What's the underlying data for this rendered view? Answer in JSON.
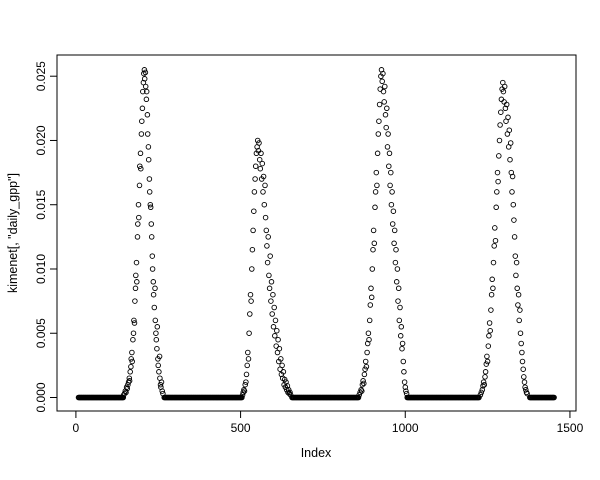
{
  "chart_data": {
    "type": "scatter",
    "title": "",
    "xlabel": "Index",
    "ylabel": "kimenet[, \"daily_gpp\"]",
    "background": "#ffffff",
    "marker": {
      "shape": "open-circle",
      "color": "#000000"
    },
    "grid": false,
    "legend": null,
    "x_range": [
      -57.4,
      1518.4
    ],
    "y_range": [
      -0.00105,
      0.02665
    ],
    "x_ticks": [
      {
        "value": 0,
        "label": "0"
      },
      {
        "value": 500,
        "label": "500"
      },
      {
        "value": 1000,
        "label": "1000"
      },
      {
        "value": 1500,
        "label": "1500"
      }
    ],
    "y_ticks": [
      {
        "value": 0.0,
        "label": "0.000"
      },
      {
        "value": 0.005,
        "label": "0.005"
      },
      {
        "value": 0.01,
        "label": "0.010"
      },
      {
        "value": 0.015,
        "label": "0.015"
      },
      {
        "value": 0.02,
        "label": "0.020"
      },
      {
        "value": 0.025,
        "label": "0.025"
      }
    ],
    "zero_runs": [
      [
        8,
        145
      ],
      [
        268,
        504
      ],
      [
        656,
        858
      ],
      [
        1006,
        1224
      ],
      [
        1378,
        1452
      ]
    ],
    "points": [
      [
        145,
        0.0002
      ],
      [
        148,
        0.0003
      ],
      [
        150,
        0.0005
      ],
      [
        152,
        0.0004
      ],
      [
        154,
        0.0008
      ],
      [
        156,
        0.0007
      ],
      [
        158,
        0.001
      ],
      [
        160,
        0.0012
      ],
      [
        162,
        0.0015
      ],
      [
        163,
        0.0013
      ],
      [
        165,
        0.002
      ],
      [
        167,
        0.0024
      ],
      [
        168,
        0.003
      ],
      [
        170,
        0.0035
      ],
      [
        171,
        0.0028
      ],
      [
        173,
        0.0045
      ],
      [
        175,
        0.005
      ],
      [
        176,
        0.006
      ],
      [
        178,
        0.0058
      ],
      [
        179,
        0.0075
      ],
      [
        181,
        0.0085
      ],
      [
        182,
        0.0095
      ],
      [
        184,
        0.0105
      ],
      [
        185,
        0.009
      ],
      [
        187,
        0.0125
      ],
      [
        188,
        0.0135
      ],
      [
        190,
        0.015
      ],
      [
        191,
        0.014
      ],
      [
        193,
        0.0165
      ],
      [
        194,
        0.018
      ],
      [
        196,
        0.019
      ],
      [
        197,
        0.0178
      ],
      [
        199,
        0.0205
      ],
      [
        200,
        0.0215
      ],
      [
        202,
        0.0225
      ],
      [
        203,
        0.0238
      ],
      [
        205,
        0.0245
      ],
      [
        206,
        0.0252
      ],
      [
        208,
        0.0255
      ],
      [
        209,
        0.0248
      ],
      [
        211,
        0.0253
      ],
      [
        212,
        0.0242
      ],
      [
        214,
        0.0232
      ],
      [
        215,
        0.0238
      ],
      [
        217,
        0.022
      ],
      [
        218,
        0.0205
      ],
      [
        220,
        0.0195
      ],
      [
        221,
        0.0185
      ],
      [
        223,
        0.017
      ],
      [
        224,
        0.016
      ],
      [
        226,
        0.015
      ],
      [
        227,
        0.0148
      ],
      [
        229,
        0.0135
      ],
      [
        230,
        0.0125
      ],
      [
        232,
        0.011
      ],
      [
        233,
        0.01
      ],
      [
        235,
        0.009
      ],
      [
        236,
        0.008
      ],
      [
        238,
        0.007
      ],
      [
        240,
        0.0085
      ],
      [
        241,
        0.006
      ],
      [
        243,
        0.005
      ],
      [
        244,
        0.0045
      ],
      [
        246,
        0.0038
      ],
      [
        247,
        0.0055
      ],
      [
        249,
        0.003
      ],
      [
        250,
        0.0025
      ],
      [
        252,
        0.002
      ],
      [
        254,
        0.0032
      ],
      [
        255,
        0.0015
      ],
      [
        257,
        0.001
      ],
      [
        258,
        0.0008
      ],
      [
        260,
        0.0012
      ],
      [
        262,
        0.0005
      ],
      [
        264,
        0.0003
      ],
      [
        506,
        0.0002
      ],
      [
        508,
        0.0004
      ],
      [
        510,
        0.0006
      ],
      [
        512,
        0.0005
      ],
      [
        514,
        0.001
      ],
      [
        516,
        0.0012
      ],
      [
        518,
        0.0018
      ],
      [
        520,
        0.0025
      ],
      [
        522,
        0.0035
      ],
      [
        524,
        0.003
      ],
      [
        526,
        0.005
      ],
      [
        528,
        0.0065
      ],
      [
        530,
        0.008
      ],
      [
        532,
        0.0075
      ],
      [
        534,
        0.01
      ],
      [
        536,
        0.0115
      ],
      [
        538,
        0.013
      ],
      [
        540,
        0.0145
      ],
      [
        542,
        0.016
      ],
      [
        544,
        0.017
      ],
      [
        546,
        0.018
      ],
      [
        548,
        0.019
      ],
      [
        550,
        0.0195
      ],
      [
        552,
        0.02
      ],
      [
        554,
        0.0192
      ],
      [
        556,
        0.0198
      ],
      [
        558,
        0.0185
      ],
      [
        560,
        0.0178
      ],
      [
        562,
        0.019
      ],
      [
        564,
        0.017
      ],
      [
        566,
        0.0182
      ],
      [
        568,
        0.016
      ],
      [
        570,
        0.0172
      ],
      [
        572,
        0.015
      ],
      [
        574,
        0.0165
      ],
      [
        576,
        0.014
      ],
      [
        578,
        0.013
      ],
      [
        580,
        0.0118
      ],
      [
        582,
        0.0105
      ],
      [
        584,
        0.0125
      ],
      [
        586,
        0.0095
      ],
      [
        588,
        0.0085
      ],
      [
        590,
        0.011
      ],
      [
        592,
        0.0075
      ],
      [
        594,
        0.009
      ],
      [
        596,
        0.0065
      ],
      [
        598,
        0.008
      ],
      [
        600,
        0.0055
      ],
      [
        602,
        0.007
      ],
      [
        604,
        0.0048
      ],
      [
        606,
        0.006
      ],
      [
        608,
        0.004
      ],
      [
        610,
        0.0052
      ],
      [
        612,
        0.0035
      ],
      [
        614,
        0.0045
      ],
      [
        616,
        0.0028
      ],
      [
        618,
        0.0038
      ],
      [
        620,
        0.0022
      ],
      [
        622,
        0.003
      ],
      [
        624,
        0.0018
      ],
      [
        626,
        0.0025
      ],
      [
        628,
        0.0015
      ],
      [
        630,
        0.002
      ],
      [
        632,
        0.001
      ],
      [
        634,
        0.0014
      ],
      [
        636,
        0.0008
      ],
      [
        638,
        0.0012
      ],
      [
        640,
        0.0006
      ],
      [
        642,
        0.0009
      ],
      [
        644,
        0.0004
      ],
      [
        646,
        0.0006
      ],
      [
        648,
        0.0003
      ],
      [
        650,
        0.0004
      ],
      [
        652,
        0.0002
      ],
      [
        860,
        0.0002
      ],
      [
        863,
        0.0004
      ],
      [
        866,
        0.0006
      ],
      [
        868,
        0.0005
      ],
      [
        870,
        0.001
      ],
      [
        872,
        0.0013
      ],
      [
        874,
        0.0011
      ],
      [
        876,
        0.0018
      ],
      [
        878,
        0.0022
      ],
      [
        880,
        0.0028
      ],
      [
        882,
        0.0024
      ],
      [
        884,
        0.0035
      ],
      [
        886,
        0.0042
      ],
      [
        888,
        0.005
      ],
      [
        890,
        0.0045
      ],
      [
        892,
        0.006
      ],
      [
        894,
        0.0072
      ],
      [
        896,
        0.0085
      ],
      [
        898,
        0.0078
      ],
      [
        900,
        0.01
      ],
      [
        902,
        0.0115
      ],
      [
        904,
        0.013
      ],
      [
        906,
        0.012
      ],
      [
        908,
        0.0148
      ],
      [
        910,
        0.016
      ],
      [
        912,
        0.0175
      ],
      [
        914,
        0.0165
      ],
      [
        916,
        0.019
      ],
      [
        918,
        0.0205
      ],
      [
        920,
        0.0215
      ],
      [
        922,
        0.0228
      ],
      [
        924,
        0.024
      ],
      [
        926,
        0.025
      ],
      [
        928,
        0.0255
      ],
      [
        930,
        0.0246
      ],
      [
        932,
        0.0252
      ],
      [
        934,
        0.0238
      ],
      [
        936,
        0.023
      ],
      [
        938,
        0.0242
      ],
      [
        940,
        0.022
      ],
      [
        942,
        0.021
      ],
      [
        944,
        0.0225
      ],
      [
        946,
        0.0195
      ],
      [
        948,
        0.0205
      ],
      [
        950,
        0.018
      ],
      [
        952,
        0.019
      ],
      [
        954,
        0.0165
      ],
      [
        956,
        0.0175
      ],
      [
        958,
        0.015
      ],
      [
        960,
        0.016
      ],
      [
        962,
        0.0135
      ],
      [
        964,
        0.0145
      ],
      [
        966,
        0.012
      ],
      [
        968,
        0.013
      ],
      [
        970,
        0.0105
      ],
      [
        972,
        0.0115
      ],
      [
        974,
        0.009
      ],
      [
        976,
        0.01
      ],
      [
        978,
        0.0075
      ],
      [
        980,
        0.0085
      ],
      [
        982,
        0.006
      ],
      [
        984,
        0.007
      ],
      [
        986,
        0.0048
      ],
      [
        988,
        0.0055
      ],
      [
        990,
        0.0038
      ],
      [
        992,
        0.0042
      ],
      [
        994,
        0.0028
      ],
      [
        996,
        0.002
      ],
      [
        998,
        0.0012
      ],
      [
        1000,
        0.0008
      ],
      [
        1002,
        0.0005
      ],
      [
        1004,
        0.0003
      ],
      [
        1228,
        0.0002
      ],
      [
        1231,
        0.0004
      ],
      [
        1234,
        0.0006
      ],
      [
        1236,
        0.0009
      ],
      [
        1238,
        0.0012
      ],
      [
        1240,
        0.001
      ],
      [
        1242,
        0.0016
      ],
      [
        1244,
        0.002
      ],
      [
        1246,
        0.0026
      ],
      [
        1248,
        0.0032
      ],
      [
        1250,
        0.0028
      ],
      [
        1252,
        0.004
      ],
      [
        1254,
        0.0048
      ],
      [
        1256,
        0.0058
      ],
      [
        1258,
        0.0052
      ],
      [
        1260,
        0.0068
      ],
      [
        1262,
        0.008
      ],
      [
        1264,
        0.0092
      ],
      [
        1266,
        0.0085
      ],
      [
        1268,
        0.0105
      ],
      [
        1270,
        0.0118
      ],
      [
        1272,
        0.0132
      ],
      [
        1274,
        0.0122
      ],
      [
        1276,
        0.0148
      ],
      [
        1278,
        0.016
      ],
      [
        1280,
        0.0175
      ],
      [
        1282,
        0.0168
      ],
      [
        1284,
        0.0188
      ],
      [
        1286,
        0.02
      ],
      [
        1288,
        0.0212
      ],
      [
        1290,
        0.0222
      ],
      [
        1292,
        0.0232
      ],
      [
        1294,
        0.024
      ],
      [
        1296,
        0.0245
      ],
      [
        1298,
        0.0238
      ],
      [
        1300,
        0.023
      ],
      [
        1302,
        0.0242
      ],
      [
        1304,
        0.0225
      ],
      [
        1306,
        0.0215
      ],
      [
        1308,
        0.0228
      ],
      [
        1310,
        0.0205
      ],
      [
        1312,
        0.0218
      ],
      [
        1314,
        0.0195
      ],
      [
        1316,
        0.0208
      ],
      [
        1318,
        0.0185
      ],
      [
        1320,
        0.0198
      ],
      [
        1322,
        0.0175
      ],
      [
        1324,
        0.016
      ],
      [
        1326,
        0.0172
      ],
      [
        1328,
        0.015
      ],
      [
        1330,
        0.0138
      ],
      [
        1332,
        0.0125
      ],
      [
        1334,
        0.011
      ],
      [
        1336,
        0.0095
      ],
      [
        1338,
        0.0105
      ],
      [
        1340,
        0.0085
      ],
      [
        1342,
        0.0072
      ],
      [
        1344,
        0.008
      ],
      [
        1346,
        0.006
      ],
      [
        1348,
        0.0068
      ],
      [
        1350,
        0.005
      ],
      [
        1352,
        0.0042
      ],
      [
        1354,
        0.0035
      ],
      [
        1356,
        0.0028
      ],
      [
        1358,
        0.0022
      ],
      [
        1360,
        0.0016
      ],
      [
        1362,
        0.0012
      ],
      [
        1364,
        0.0008
      ],
      [
        1366,
        0.0006
      ],
      [
        1368,
        0.0004
      ],
      [
        1370,
        0.0003
      ]
    ]
  }
}
